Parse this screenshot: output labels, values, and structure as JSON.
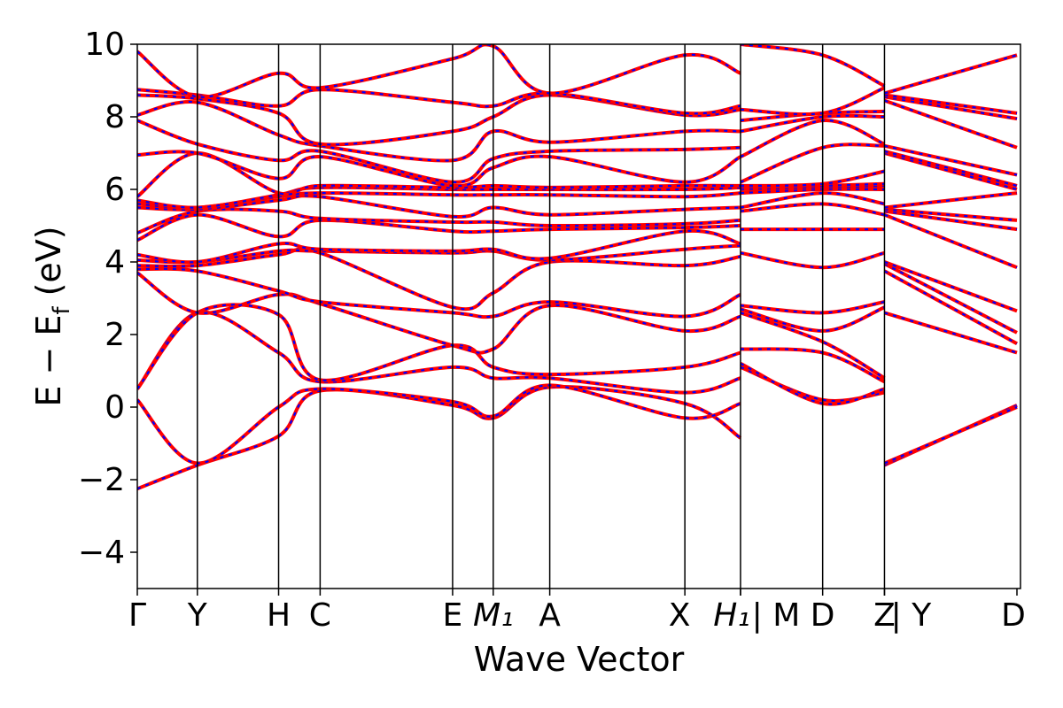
{
  "chart_data": {
    "type": "line",
    "title": "",
    "xlabel": "Wave Vector",
    "ylabel": "E − E_f (eV)",
    "ylabel_main": "E − E",
    "ylabel_sub": "f",
    "ylabel_unit": " (eV)",
    "ylim": [
      -5,
      10
    ],
    "yticks": [
      "−4",
      "−2",
      "0",
      "2",
      "4",
      "6",
      "8",
      "10"
    ],
    "ytick_values": [
      -4,
      -2,
      0,
      2,
      4,
      6,
      8,
      10
    ],
    "xlim": [
      0,
      10
    ],
    "kpoints": [
      {
        "label": "Γ",
        "x": 0.0
      },
      {
        "label": "Y",
        "x": 0.68
      },
      {
        "label": "H",
        "x": 1.6
      },
      {
        "label": "C",
        "x": 2.07
      },
      {
        "label": "E",
        "x": 3.57
      },
      {
        "label": "M₁",
        "x": 4.03
      },
      {
        "label": "A",
        "x": 4.67
      },
      {
        "label": "X",
        "x": 6.2
      },
      {
        "label": "H₁",
        "x": 6.83
      },
      {
        "label": "| M",
        "x": 6.83
      },
      {
        "label": "D",
        "x": 7.76
      },
      {
        "label": "Z",
        "x": 8.46
      },
      {
        "label": "| Y",
        "x": 8.46
      },
      {
        "label": "D",
        "x": 9.96
      }
    ],
    "kpoint_lines": [
      0.68,
      1.6,
      2.07,
      3.57,
      4.03,
      4.67,
      6.2,
      6.83,
      7.76,
      8.46
    ],
    "grid": false,
    "series_colors": {
      "primary": "#ff0000",
      "overlay": "#0000ff"
    },
    "series": [
      {
        "segment": 1,
        "x": [
          0.0,
          0.68,
          1.6,
          2.07,
          3.57,
          4.03,
          4.67,
          6.2,
          6.83
        ],
        "bands": [
          [
            -2.25,
            -1.6,
            -0.8,
            0.45,
            0.05,
            -0.3,
            0.55,
            0.1,
            -0.85
          ],
          [
            0.2,
            -1.55,
            0.0,
            0.5,
            0.15,
            -0.25,
            0.6,
            -0.3,
            0.1
          ],
          [
            0.5,
            2.6,
            1.5,
            0.7,
            1.1,
            0.8,
            0.8,
            0.4,
            0.8
          ],
          [
            0.5,
            2.6,
            2.55,
            0.75,
            1.7,
            1.1,
            0.9,
            1.1,
            1.5
          ],
          [
            3.7,
            2.6,
            3.1,
            2.85,
            1.7,
            1.6,
            2.8,
            2.1,
            2.5
          ],
          [
            3.8,
            3.75,
            3.2,
            2.9,
            2.6,
            2.5,
            2.9,
            2.5,
            3.1
          ],
          [
            3.9,
            3.9,
            4.2,
            4.25,
            2.75,
            3.15,
            4.0,
            3.9,
            4.15
          ],
          [
            4.05,
            4.0,
            4.3,
            4.3,
            4.25,
            4.3,
            4.05,
            4.35,
            4.45
          ],
          [
            4.2,
            4.0,
            4.5,
            4.35,
            4.3,
            4.35,
            4.1,
            4.85,
            4.5
          ],
          [
            4.6,
            5.3,
            4.7,
            5.15,
            4.85,
            4.85,
            4.9,
            4.95,
            5.0
          ],
          [
            4.8,
            5.4,
            5.4,
            5.2,
            5.1,
            5.1,
            5.0,
            5.05,
            5.15
          ],
          [
            5.5,
            5.45,
            5.7,
            5.8,
            5.25,
            5.5,
            5.3,
            5.45,
            5.5
          ],
          [
            5.6,
            5.5,
            5.8,
            5.9,
            5.85,
            5.85,
            5.85,
            5.8,
            5.9
          ],
          [
            5.7,
            5.5,
            5.85,
            6.05,
            6.0,
            6.0,
            6.0,
            6.0,
            6.05
          ],
          [
            5.8,
            7.0,
            5.9,
            6.1,
            6.05,
            6.1,
            6.05,
            6.1,
            6.1
          ],
          [
            6.95,
            7.0,
            6.3,
            6.9,
            6.1,
            6.6,
            6.9,
            6.2,
            6.9
          ],
          [
            7.9,
            7.25,
            6.8,
            7.05,
            6.2,
            6.85,
            7.05,
            7.1,
            7.15
          ],
          [
            8.05,
            8.4,
            7.5,
            7.2,
            6.8,
            7.6,
            7.3,
            7.6,
            7.6
          ],
          [
            8.6,
            8.5,
            8.1,
            7.25,
            7.6,
            8.0,
            8.6,
            8.05,
            8.2
          ],
          [
            8.75,
            8.6,
            8.3,
            8.75,
            8.4,
            8.3,
            8.65,
            8.1,
            8.3
          ],
          [
            9.8,
            8.55,
            9.2,
            8.8,
            9.6,
            9.95,
            8.65,
            9.7,
            9.2
          ]
        ]
      },
      {
        "segment": 2,
        "x": [
          6.83,
          7.76,
          8.46
        ],
        "bands": [
          [
            1.1,
            0.2,
            0.4
          ],
          [
            1.2,
            0.1,
            0.5
          ],
          [
            1.6,
            1.5,
            0.7
          ],
          [
            2.6,
            1.8,
            0.8
          ],
          [
            2.7,
            2.1,
            2.75
          ],
          [
            2.8,
            2.6,
            2.9
          ],
          [
            4.25,
            3.85,
            4.25
          ],
          [
            4.9,
            4.9,
            4.9
          ],
          [
            5.4,
            5.6,
            5.3
          ],
          [
            5.5,
            5.9,
            5.6
          ],
          [
            5.9,
            6.0,
            6.0
          ],
          [
            6.0,
            6.05,
            6.1
          ],
          [
            6.05,
            6.1,
            6.15
          ],
          [
            6.1,
            6.15,
            6.5
          ],
          [
            6.2,
            7.15,
            7.2
          ],
          [
            6.9,
            7.9,
            7.25
          ],
          [
            7.6,
            8.0,
            8.0
          ],
          [
            7.9,
            8.1,
            8.15
          ],
          [
            8.2,
            8.1,
            8.8
          ],
          [
            10.0,
            9.7,
            8.85
          ]
        ]
      },
      {
        "segment": 3,
        "x": [
          8.46,
          9.96
        ],
        "bands": [
          [
            -1.6,
            0.05
          ],
          [
            -1.55,
            0.0
          ],
          [
            2.6,
            1.5
          ],
          [
            3.75,
            1.75
          ],
          [
            3.95,
            2.05
          ],
          [
            4.0,
            2.65
          ],
          [
            5.3,
            3.85
          ],
          [
            5.4,
            4.9
          ],
          [
            5.45,
            5.15
          ],
          [
            5.5,
            5.9
          ],
          [
            7.0,
            6.0
          ],
          [
            7.05,
            6.1
          ],
          [
            7.2,
            6.4
          ],
          [
            8.45,
            7.15
          ],
          [
            8.55,
            7.95
          ],
          [
            8.6,
            8.1
          ],
          [
            8.65,
            9.7
          ]
        ]
      }
    ]
  }
}
